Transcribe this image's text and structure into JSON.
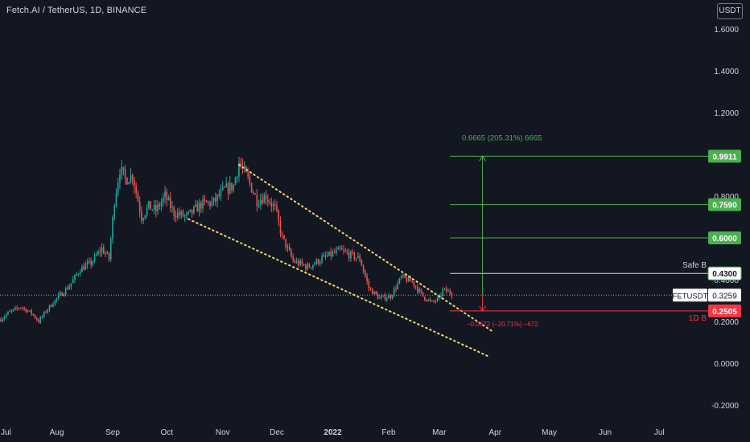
{
  "header": {
    "title": "Fetch.AI / TetherUS, 1D, BINANCE",
    "currency": "USDT"
  },
  "colors": {
    "background": "#131722",
    "up": "#26a69a",
    "down": "#ef5350",
    "green_line": "#4caf50",
    "red_line": "#f23645",
    "channel": "#f5d76e",
    "axis_text": "#d1d4dc"
  },
  "chart_data": {
    "type": "candlestick",
    "symbol": "FETUSDT",
    "y_ticks": [
      "1.6000",
      "1.4000",
      "1.2000",
      "0.8000",
      "0.4000",
      "0.2000",
      "0.0000",
      "-0.2000"
    ],
    "x_ticks": [
      "Jul",
      "Aug",
      "Sep",
      "Oct",
      "Nov",
      "Dec",
      "2022",
      "Feb",
      "Mar",
      "Apr",
      "May",
      "Jun",
      "Jul"
    ],
    "ylim": [
      -0.2,
      1.6
    ],
    "last_price": 0.3259,
    "price_levels": [
      {
        "label": "0.9911",
        "value": 0.9911,
        "color": "#4caf50"
      },
      {
        "label": "0.7590",
        "value": 0.759,
        "color": "#4caf50"
      },
      {
        "label": "0.6000",
        "value": 0.6,
        "color": "#4caf50"
      },
      {
        "label": "0.4300",
        "value": 0.43,
        "color": "#d1d4dc",
        "annotation": "Safe B"
      },
      {
        "label": "0.2505",
        "value": 0.2505,
        "color": "#f23645",
        "annotation": "1D B"
      }
    ],
    "measure_up": {
      "text": "0.6665 (205.31%) 6665"
    },
    "measure_down": {
      "text": "−0.0672 (−20.71%) −672"
    },
    "symbol_tag": {
      "label": "FETUSDT",
      "value": "0.3259"
    },
    "price_path": [
      [
        "2021-07-01",
        0.21
      ],
      [
        "2021-07-05",
        0.24
      ],
      [
        "2021-07-12",
        0.27
      ],
      [
        "2021-07-18",
        0.24
      ],
      [
        "2021-07-22",
        0.2
      ],
      [
        "2021-07-26",
        0.25
      ],
      [
        "2021-08-01",
        0.31
      ],
      [
        "2021-08-08",
        0.37
      ],
      [
        "2021-08-14",
        0.45
      ],
      [
        "2021-08-20",
        0.48
      ],
      [
        "2021-08-26",
        0.55
      ],
      [
        "2021-08-30",
        0.5
      ],
      [
        "2021-09-02",
        0.78
      ],
      [
        "2021-09-05",
        0.93
      ],
      [
        "2021-09-08",
        0.88
      ],
      [
        "2021-09-12",
        0.9
      ],
      [
        "2021-09-17",
        0.7
      ],
      [
        "2021-09-21",
        0.75
      ],
      [
        "2021-09-25",
        0.73
      ],
      [
        "2021-09-30",
        0.8
      ],
      [
        "2021-10-05",
        0.72
      ],
      [
        "2021-10-12",
        0.7
      ],
      [
        "2021-10-20",
        0.76
      ],
      [
        "2021-10-27",
        0.77
      ],
      [
        "2021-11-02",
        0.83
      ],
      [
        "2021-11-07",
        0.85
      ],
      [
        "2021-11-10",
        0.96
      ],
      [
        "2021-11-15",
        0.88
      ],
      [
        "2021-11-20",
        0.78
      ],
      [
        "2021-11-25",
        0.8
      ],
      [
        "2021-11-30",
        0.74
      ],
      [
        "2021-12-04",
        0.6
      ],
      [
        "2021-12-10",
        0.49
      ],
      [
        "2021-12-18",
        0.46
      ],
      [
        "2021-12-26",
        0.5
      ],
      [
        "2021-12-31",
        0.52
      ],
      [
        "2022-01-05",
        0.54
      ],
      [
        "2022-01-10",
        0.52
      ],
      [
        "2022-01-16",
        0.5
      ],
      [
        "2022-01-21",
        0.36
      ],
      [
        "2022-01-27",
        0.31
      ],
      [
        "2022-02-02",
        0.32
      ],
      [
        "2022-02-08",
        0.41
      ],
      [
        "2022-02-14",
        0.39
      ],
      [
        "2022-02-20",
        0.32
      ],
      [
        "2022-02-25",
        0.29
      ],
      [
        "2022-03-01",
        0.31
      ],
      [
        "2022-03-03",
        0.35
      ],
      [
        "2022-03-07",
        0.34
      ],
      [
        "2022-03-09",
        0.3259
      ]
    ],
    "channel_upper": [
      [
        "2021-11-10",
        0.95
      ],
      [
        "2022-03-31",
        0.15
      ]
    ],
    "channel_lower": [
      [
        "2021-10-13",
        0.69
      ],
      [
        "2022-03-29",
        0.03
      ]
    ]
  }
}
